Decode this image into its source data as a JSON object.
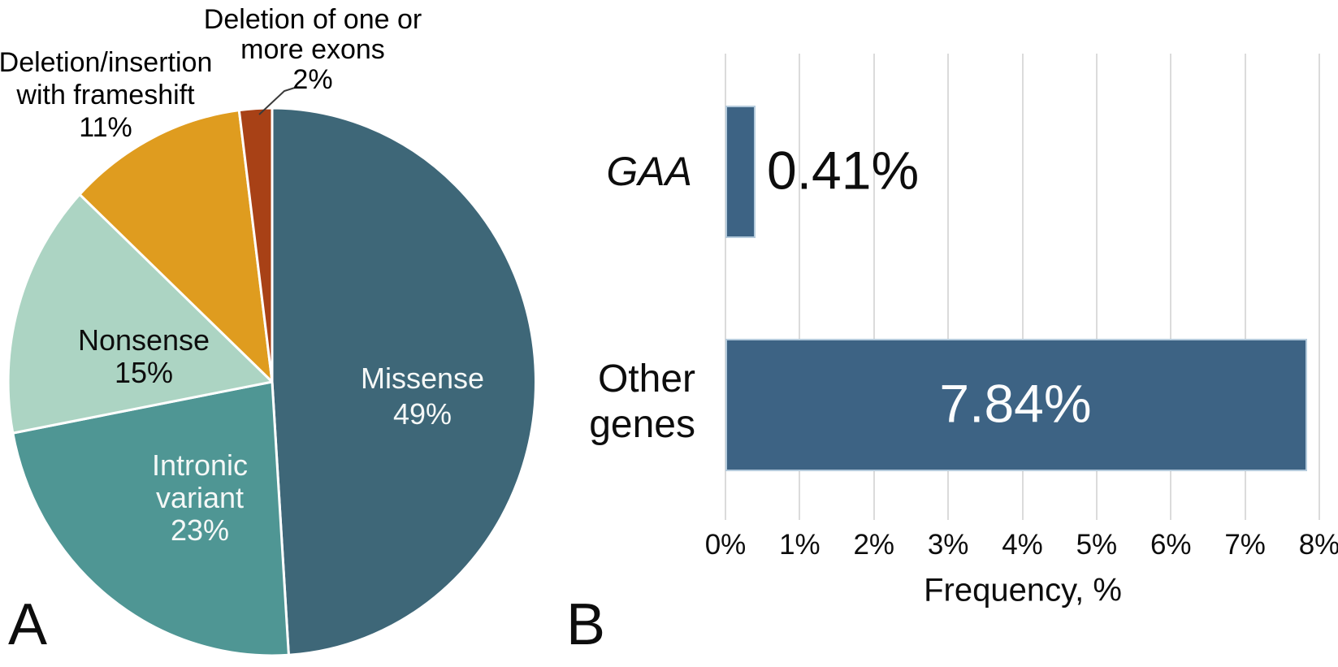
{
  "panels": {
    "a_letter": "A",
    "b_letter": "B"
  },
  "chart_data": [
    {
      "type": "pie",
      "panel": "A",
      "start_angle_deg": 0,
      "direction": "clockwise",
      "slice_border_color": "#FFFFFF",
      "slices": [
        {
          "id": "missense",
          "label": "Missense",
          "value": 49,
          "color": "#3E6778",
          "text_color": "#FFFFFF",
          "label_lines": [
            "Missense",
            "49%"
          ]
        },
        {
          "id": "intronic-variant",
          "label": "Intronic variant",
          "value": 23,
          "color": "#4F9694",
          "text_color": "#FFFFFF",
          "label_lines": [
            "Intronic",
            "variant",
            "23%"
          ]
        },
        {
          "id": "nonsense",
          "label": "Nonsense",
          "value": 15,
          "color": "#ACD4C3",
          "text_color": "#000000",
          "label_lines": [
            "Nonsense",
            "15%"
          ]
        },
        {
          "id": "deletion-insertion-frameshift",
          "label": "Deletion/insertion with frameshift",
          "value": 11,
          "color": "#DF9C1F",
          "text_color": "#000000",
          "label_lines": [
            "Deletion/insertion",
            "with frameshift",
            "11%"
          ]
        },
        {
          "id": "deletion-exons",
          "label": "Deletion of one or more exons",
          "value": 2,
          "color": "#A84116",
          "text_color": "#000000",
          "label_lines": [
            "Deletion of one or",
            "more exons",
            "2%"
          ]
        }
      ]
    },
    {
      "type": "bar",
      "panel": "B",
      "orientation": "horizontal",
      "categories": [
        "GAA",
        "Other genes"
      ],
      "category_label_lines": [
        [
          "GAA"
        ],
        [
          "Other",
          "genes"
        ]
      ],
      "values": [
        0.41,
        7.84
      ],
      "value_labels": [
        "0.41%",
        "7.84%"
      ],
      "bar_color": "#3D6384",
      "bar_border_color": "#B5CBDC",
      "xlabel": "Frequency, %",
      "xlim": [
        0,
        8
      ],
      "x_ticks": [
        "0%",
        "1%",
        "2%",
        "3%",
        "4%",
        "5%",
        "6%",
        "7%",
        "8%"
      ],
      "grid": true,
      "gridline_color": "#DBDBDB"
    }
  ]
}
